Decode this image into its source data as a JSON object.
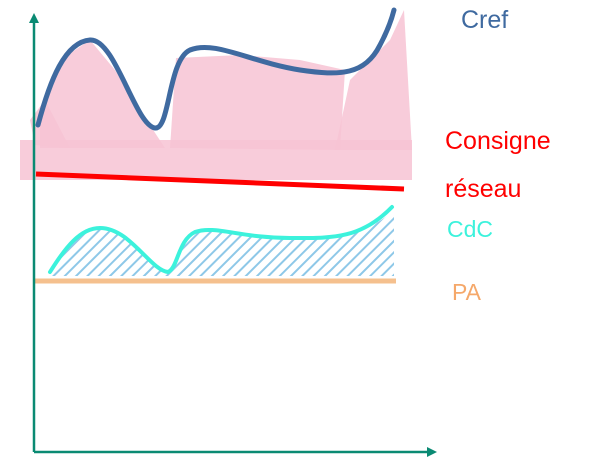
{
  "labels": {
    "cref": "Cref",
    "consigne_line1": "Consigne",
    "consigne_line2": "réseau",
    "cdc": "CdC",
    "pa": "PA"
  },
  "colors": {
    "axes": "#0a8a73",
    "cref": "#3f6aa0",
    "cref_fill": "#f7c3d3",
    "consigne": "#ff0000",
    "cdc": "#3cf2dc",
    "cdc_hatch": "#8ec8e8",
    "pa": "#f5c08e"
  }
}
